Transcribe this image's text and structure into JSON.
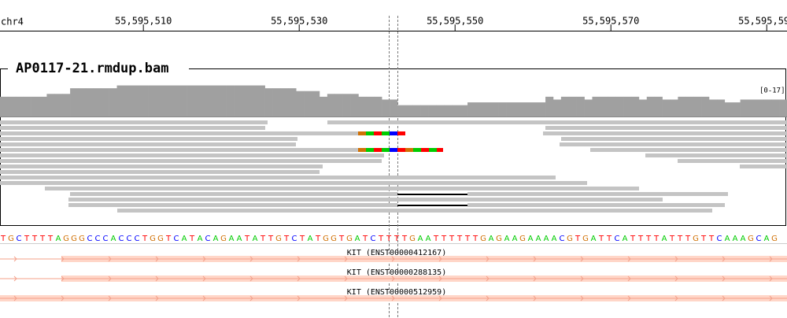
{
  "chromosome": "chr4",
  "ruler_ticks": [
    {
      "value": 55595510,
      "label": "55,595,510"
    },
    {
      "value": 55595530,
      "label": "55,595,530"
    },
    {
      "value": 55595550,
      "label": "55,595,550"
    },
    {
      "value": 55595570,
      "label": "55,595,570"
    },
    {
      "value": 55595590,
      "label": "55,595,590"
    }
  ],
  "xlim": [
    55595491.6,
    55595592.6
  ],
  "track": {
    "name": "AP0117-21.rmdup.bam",
    "range_label": "[0-17]",
    "coverage_range": [
      0,
      17
    ],
    "coverage": [
      7,
      7,
      7,
      7,
      7,
      7,
      8,
      8,
      8,
      10,
      10,
      10,
      10,
      10,
      10,
      11,
      11,
      11,
      11,
      11,
      11,
      11,
      11,
      11,
      11,
      11,
      11,
      11,
      11,
      11,
      11,
      11,
      11,
      11,
      10,
      10,
      10,
      10,
      9,
      9,
      9,
      7,
      8,
      8,
      8,
      8,
      7,
      7,
      7,
      6,
      6,
      4,
      4,
      4,
      4,
      4,
      4,
      4,
      4,
      4,
      5,
      5,
      5,
      5,
      5,
      5,
      5,
      5,
      5,
      5,
      7,
      6,
      7,
      7,
      7,
      6,
      7,
      7,
      7,
      7,
      7,
      7,
      6,
      7,
      7,
      6,
      6,
      7,
      7,
      7,
      7,
      6,
      6,
      5,
      5,
      6,
      6,
      6,
      6,
      6,
      6
    ]
  },
  "reference_sequence": [
    "T",
    "G",
    "C",
    "T",
    "T",
    "T",
    "T",
    "A",
    "G",
    "G",
    "G",
    "C",
    "C",
    "C",
    "A",
    "C",
    "C",
    "C",
    "T",
    "G",
    "G",
    "T",
    "C",
    "A",
    "T",
    "A",
    "C",
    "A",
    "G",
    "A",
    "A",
    "T",
    "A",
    "T",
    "T",
    "G",
    "T",
    "C",
    "T",
    "A",
    "T",
    "G",
    "G",
    "T",
    "G",
    "A",
    "T",
    "C",
    "T",
    "T",
    "T",
    "T",
    "G",
    "A",
    "A",
    "T",
    "T",
    "T",
    "T",
    "T",
    "T",
    "G",
    "A",
    "G",
    "A",
    "A",
    "G",
    "A",
    "A",
    "A",
    "A",
    "C",
    "G",
    "T",
    "G",
    "A",
    "T",
    "T",
    "C",
    "A",
    "T",
    "T",
    "T",
    "T",
    "A",
    "T",
    "T",
    "T",
    "G",
    "T",
    "T",
    "C",
    "A",
    "A",
    "A",
    "G",
    "C",
    "A",
    "G"
  ],
  "transcripts": [
    "KIT (ENST00000412167)",
    "KIT (ENST00000288135)",
    "KIT (ENST00000512959)"
  ]
}
